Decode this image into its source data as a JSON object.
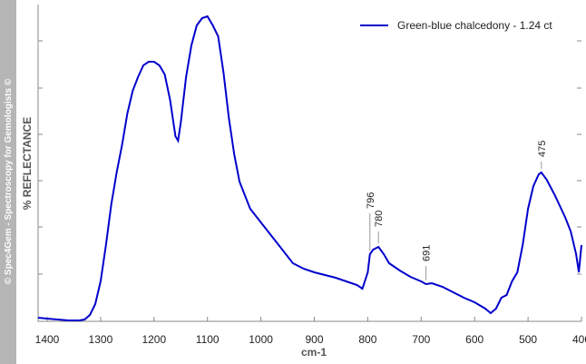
{
  "watermark": "© Spec4Gem - Spectroscopy for Gemologists ©",
  "chart_data": {
    "type": "line",
    "x_label": "cm-1",
    "y_label": "%  REFLECTANCE",
    "xlim": [
      1417,
      400
    ],
    "ylim": [
      0,
      348
    ],
    "xticks": [
      1400,
      1300,
      1200,
      1100,
      1000,
      900,
      800,
      700,
      600,
      500,
      400
    ],
    "legend": "top-right",
    "peak_labels": [
      796,
      780,
      691,
      475
    ],
    "series": [
      {
        "name": "Green-blue chalcedony - 1.24 ct",
        "color": "#0000cc",
        "x": [
          1417,
          1400,
          1380,
          1360,
          1340,
          1330,
          1320,
          1310,
          1300,
          1290,
          1280,
          1270,
          1260,
          1250,
          1240,
          1230,
          1220,
          1210,
          1200,
          1190,
          1180,
          1170,
          1160,
          1155,
          1150,
          1140,
          1130,
          1120,
          1110,
          1100,
          1090,
          1080,
          1070,
          1060,
          1050,
          1040,
          1020,
          1000,
          980,
          960,
          940,
          920,
          900,
          880,
          860,
          840,
          820,
          810,
          800,
          796,
          790,
          780,
          770,
          760,
          740,
          720,
          700,
          691,
          680,
          660,
          640,
          620,
          600,
          580,
          570,
          560,
          550,
          540,
          530,
          520,
          510,
          500,
          490,
          480,
          475,
          465,
          450,
          430,
          420,
          410,
          405,
          400
        ],
        "values": [
          3,
          2,
          1,
          0,
          0,
          1,
          6,
          18,
          43,
          83,
          128,
          163,
          193,
          228,
          253,
          268,
          281,
          285,
          285,
          281,
          271,
          243,
          203,
          198,
          218,
          268,
          303,
          325,
          333,
          335,
          325,
          313,
          273,
          223,
          183,
          153,
          123,
          108,
          93,
          78,
          63,
          57,
          53,
          50,
          47,
          43,
          39,
          35,
          53,
          73,
          78,
          81,
          73,
          63,
          55,
          48,
          43,
          40,
          41,
          37,
          31,
          25,
          20,
          13,
          8,
          13,
          25,
          28,
          43,
          53,
          83,
          123,
          148,
          161,
          163,
          155,
          138,
          113,
          98,
          73,
          53,
          83
        ]
      }
    ]
  }
}
